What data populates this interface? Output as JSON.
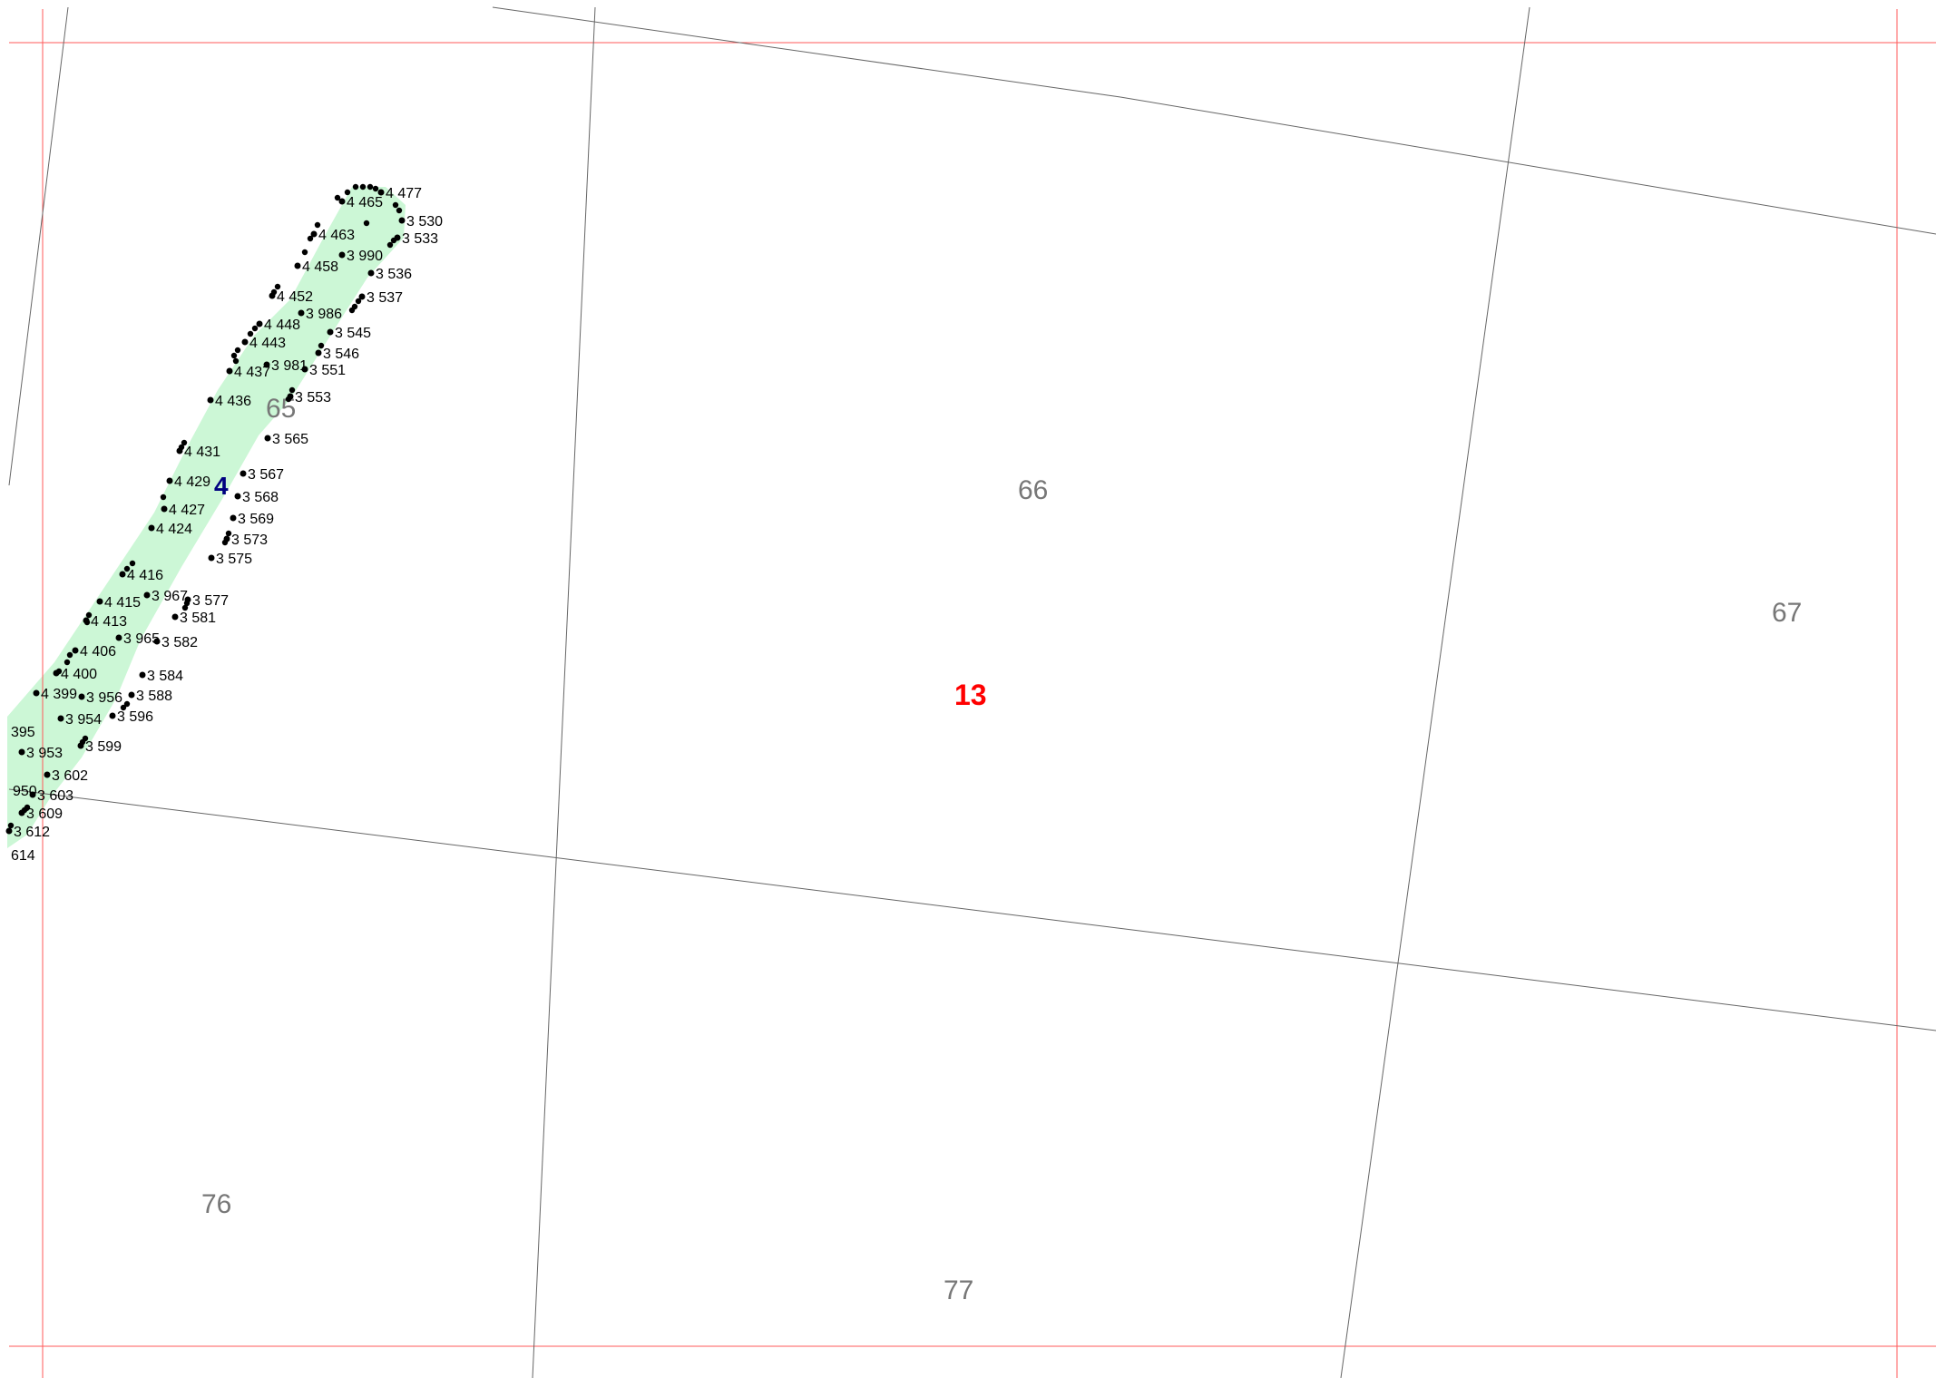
{
  "map": {
    "sheet_number": "13",
    "parcel": {
      "number": "4",
      "underlying_label": "65"
    },
    "grid_labels": {
      "cell_66": "66",
      "cell_67": "67",
      "cell_76": "76",
      "cell_77": "77"
    },
    "cutoff_labels": [
      "395",
      "950",
      "614"
    ],
    "colors": {
      "parcel_fill": "#ccf7d6",
      "frame": "#ff5a5a",
      "boundary": "#666666",
      "point": "#000000",
      "parcel_label": "#000080",
      "sheet_label": "#ff0000",
      "grid_label": "#777777"
    },
    "points": [
      "4 477",
      "4 465",
      "3 530",
      "3 533",
      "4 463",
      "3 990",
      "4 458",
      "3 536",
      "4 452",
      "3 537",
      "3 986",
      "4 448",
      "3 545",
      "4 443",
      "3 546",
      "4 437",
      "3 981",
      "3 551",
      "4 436",
      "3 553",
      "3 565",
      "4 431",
      "4 429",
      "3 567",
      "3 568",
      "4 427",
      "3 569",
      "4 424",
      "3 573",
      "3 575",
      "4 416",
      "3 967",
      "3 577",
      "4 415",
      "4 413",
      "3 581",
      "3 965",
      "3 582",
      "4 406",
      "4 400",
      "3 584",
      "4 399",
      "3 956",
      "3 588",
      "3 954",
      "3 596",
      "3 599",
      "3 953",
      "3 602",
      "3 603",
      "3 609",
      "3 612"
    ]
  }
}
